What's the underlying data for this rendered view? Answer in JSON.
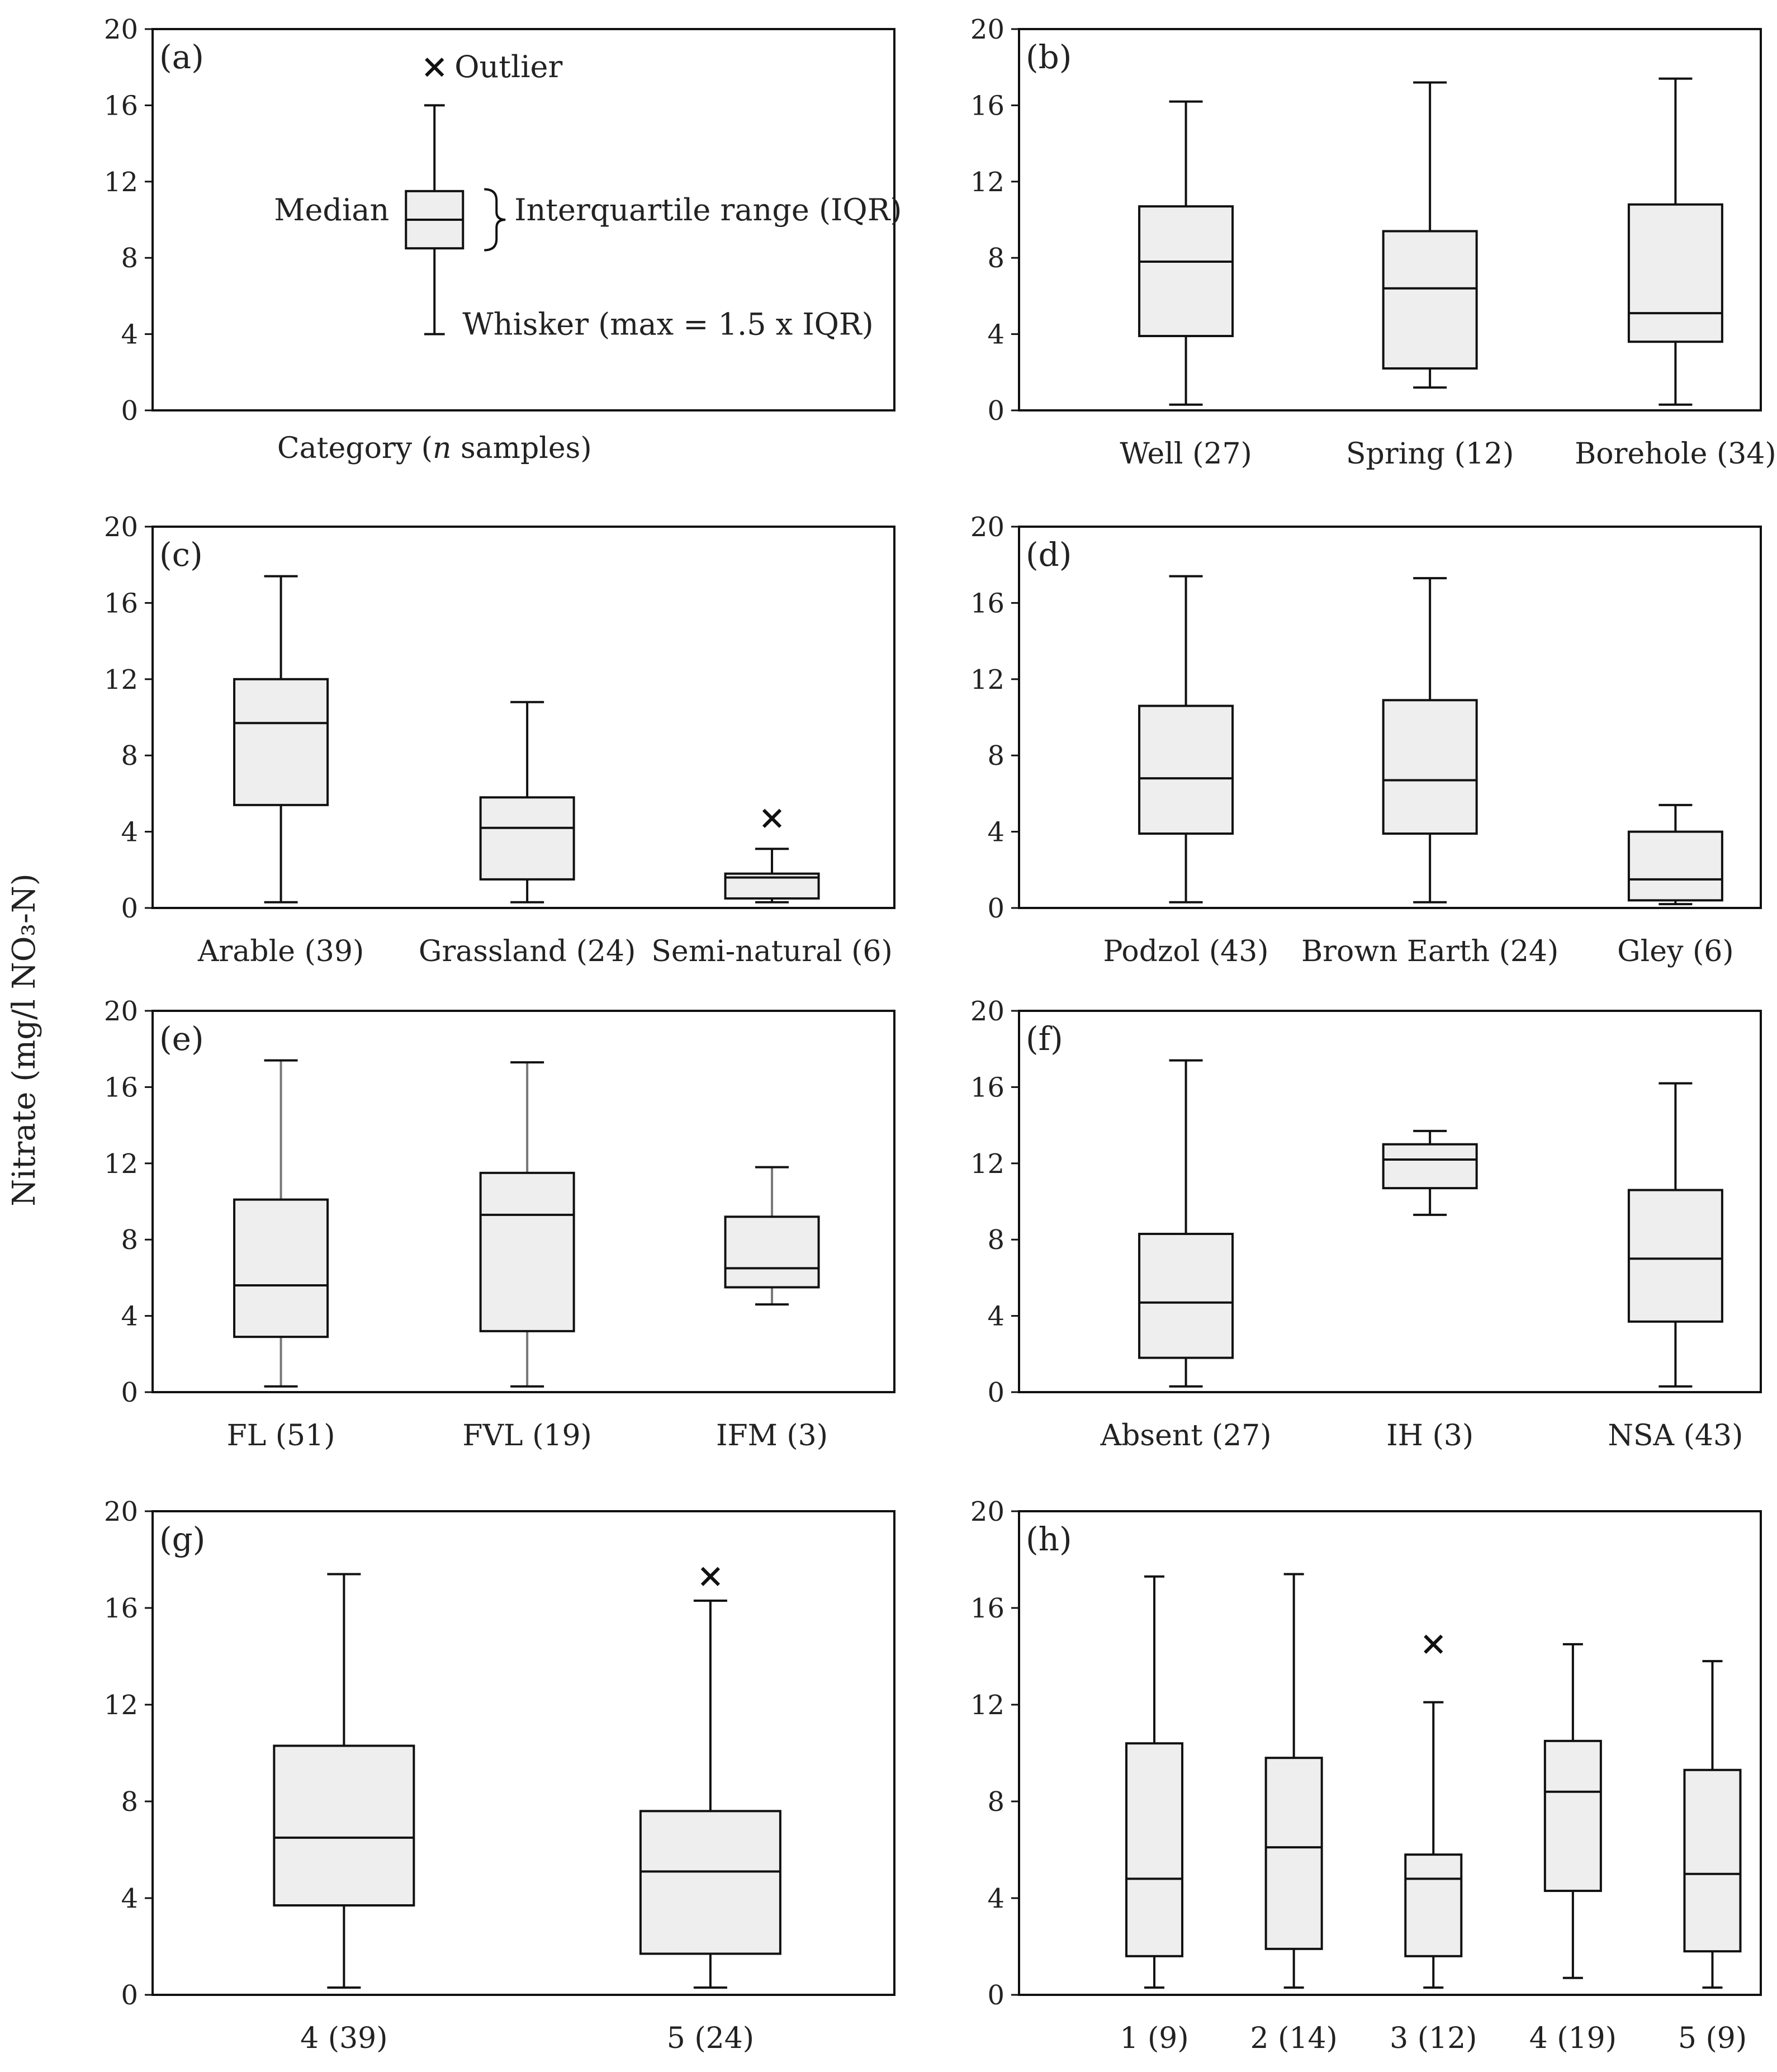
{
  "figure": {
    "y_axis_label": "Nitrate (mg/l NO₃-N)",
    "y_ticks": [
      "0",
      "4",
      "8",
      "12",
      "16",
      "20"
    ],
    "box_fill": "#eeeeee",
    "line_color": "#111111",
    "whisker_color_grey": "#777777"
  },
  "legend_panel": {
    "panel_letter": "a",
    "paren_open": "(",
    "paren_close": ")",
    "outlier_label": "Outlier",
    "median_label": "Median",
    "iqr_label": "Interquartile range (IQR)",
    "whisker_label": "Whisker (max = 1.5 x IQR)",
    "category_label": "Category (",
    "category_n": "n",
    "category_tail": " samples)"
  },
  "chart_data": [
    {
      "type": "box",
      "panel": "a",
      "title": "(a)",
      "ylim": [
        0,
        20
      ],
      "yticks": [
        0,
        4,
        8,
        12,
        16,
        20
      ],
      "categories": [
        "Category (n samples)"
      ],
      "boxes": [
        {
          "label": "",
          "whisker_low": 4,
          "q1": 8.5,
          "median": 10,
          "q3": 11.5,
          "whisker_high": 16,
          "outliers": [
            18
          ]
        }
      ]
    },
    {
      "type": "box",
      "panel": "b",
      "title": "(b)",
      "ylim": [
        0,
        20
      ],
      "yticks": [
        0,
        4,
        8,
        12,
        16,
        20
      ],
      "boxes": [
        {
          "label": "Well (27)",
          "whisker_low": 0.3,
          "q1": 3.9,
          "median": 7.8,
          "q3": 10.7,
          "whisker_high": 16.2,
          "outliers": []
        },
        {
          "label": "Spring (12)",
          "whisker_low": 1.2,
          "q1": 2.2,
          "median": 6.4,
          "q3": 9.4,
          "whisker_high": 17.2,
          "outliers": []
        },
        {
          "label": "Borehole (34)",
          "whisker_low": 0.3,
          "q1": 3.6,
          "median": 5.1,
          "q3": 10.8,
          "whisker_high": 17.4,
          "outliers": []
        }
      ]
    },
    {
      "type": "box",
      "panel": "c",
      "title": "(c)",
      "ylim": [
        0,
        20
      ],
      "yticks": [
        0,
        4,
        8,
        12,
        16,
        20
      ],
      "boxes": [
        {
          "label": "Arable (39)",
          "whisker_low": 0.3,
          "q1": 5.4,
          "median": 9.7,
          "q3": 12.0,
          "whisker_high": 17.4,
          "outliers": []
        },
        {
          "label": "Grassland (24)",
          "whisker_low": 0.3,
          "q1": 1.5,
          "median": 4.2,
          "q3": 5.8,
          "whisker_high": 10.8,
          "outliers": []
        },
        {
          "label": "Semi-natural (6)",
          "whisker_low": 0.3,
          "q1": 0.5,
          "median": 1.6,
          "q3": 1.8,
          "whisker_high": 3.1,
          "outliers": [
            4.7
          ]
        }
      ]
    },
    {
      "type": "box",
      "panel": "d",
      "title": "(d)",
      "ylim": [
        0,
        20
      ],
      "yticks": [
        0,
        4,
        8,
        12,
        16,
        20
      ],
      "boxes": [
        {
          "label": "Podzol (43)",
          "whisker_low": 0.3,
          "q1": 3.9,
          "median": 6.8,
          "q3": 10.6,
          "whisker_high": 17.4,
          "outliers": []
        },
        {
          "label": "Brown Earth (24)",
          "whisker_low": 0.3,
          "q1": 3.9,
          "median": 6.7,
          "q3": 10.9,
          "whisker_high": 17.3,
          "outliers": []
        },
        {
          "label": "Gley (6)",
          "whisker_low": 0.2,
          "q1": 0.4,
          "median": 1.5,
          "q3": 4.0,
          "whisker_high": 5.4,
          "outliers": []
        }
      ]
    },
    {
      "type": "box",
      "panel": "e",
      "title": "(e)",
      "ylim": [
        0,
        20
      ],
      "yticks": [
        0,
        4,
        8,
        12,
        16,
        20
      ],
      "boxes": [
        {
          "label": "FL (51)",
          "whisker_low": 0.3,
          "q1": 2.9,
          "median": 5.6,
          "q3": 10.1,
          "whisker_high": 17.4,
          "outliers": []
        },
        {
          "label": "FVL (19)",
          "whisker_low": 0.3,
          "q1": 3.2,
          "median": 9.3,
          "q3": 11.5,
          "whisker_high": 17.3,
          "outliers": []
        },
        {
          "label": "IFM (3)",
          "whisker_low": 4.6,
          "q1": 5.5,
          "median": 6.5,
          "q3": 9.2,
          "whisker_high": 11.8,
          "outliers": []
        }
      ]
    },
    {
      "type": "box",
      "panel": "f",
      "title": "(f)",
      "ylim": [
        0,
        20
      ],
      "yticks": [
        0,
        4,
        8,
        12,
        16,
        20
      ],
      "boxes": [
        {
          "label": "Absent (27)",
          "whisker_low": 0.3,
          "q1": 1.8,
          "median": 4.7,
          "q3": 8.3,
          "whisker_high": 17.4,
          "outliers": []
        },
        {
          "label": "IH (3)",
          "whisker_low": 9.3,
          "q1": 10.7,
          "median": 12.2,
          "q3": 13.0,
          "whisker_high": 13.7,
          "outliers": []
        },
        {
          "label": "NSA (43)",
          "whisker_low": 0.3,
          "q1": 3.7,
          "median": 7.0,
          "q3": 10.6,
          "whisker_high": 16.2,
          "outliers": []
        }
      ]
    },
    {
      "type": "box",
      "panel": "g",
      "title": "(g)",
      "ylim": [
        0,
        20
      ],
      "yticks": [
        0,
        4,
        8,
        12,
        16,
        20
      ],
      "boxes": [
        {
          "label": "4 (39)",
          "whisker_low": 0.3,
          "q1": 3.7,
          "median": 6.5,
          "q3": 10.3,
          "whisker_high": 17.4,
          "outliers": []
        },
        {
          "label": "5 (24)",
          "whisker_low": 0.3,
          "q1": 1.7,
          "median": 5.1,
          "q3": 7.6,
          "whisker_high": 16.3,
          "outliers": [
            17.3
          ]
        }
      ]
    },
    {
      "type": "box",
      "panel": "h",
      "title": "(h)",
      "ylim": [
        0,
        20
      ],
      "yticks": [
        0,
        4,
        8,
        12,
        16,
        20
      ],
      "boxes": [
        {
          "label": "1 (9)",
          "whisker_low": 0.3,
          "q1": 1.6,
          "median": 4.8,
          "q3": 10.4,
          "whisker_high": 17.3,
          "outliers": []
        },
        {
          "label": "2 (14)",
          "whisker_low": 0.3,
          "q1": 1.9,
          "median": 6.1,
          "q3": 9.8,
          "whisker_high": 17.4,
          "outliers": []
        },
        {
          "label": "3 (12)",
          "whisker_low": 0.3,
          "q1": 1.6,
          "median": 4.8,
          "q3": 5.8,
          "whisker_high": 12.1,
          "outliers": [
            14.5
          ]
        },
        {
          "label": "4 (19)",
          "whisker_low": 0.7,
          "q1": 4.3,
          "median": 8.4,
          "q3": 10.5,
          "whisker_high": 14.5,
          "outliers": []
        },
        {
          "label": "5 (9)",
          "whisker_low": 0.3,
          "q1": 1.8,
          "median": 5.0,
          "q3": 9.3,
          "whisker_high": 13.8,
          "outliers": []
        }
      ]
    }
  ]
}
